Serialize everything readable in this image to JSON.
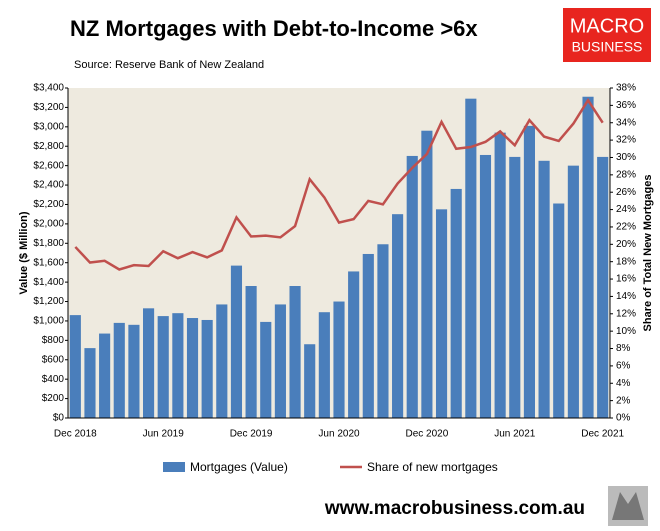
{
  "chart_data": {
    "type": "bar",
    "title": "NZ Mortgages with Debt-to-Income >6x",
    "subtitle": "Source: Reserve Bank of New Zealand",
    "logo": [
      "MACRO",
      "BUSINESS"
    ],
    "footer": "www.macrobusiness.com.au",
    "ylabel": "Value ($ Million)",
    "y2label": "Share of Total New Mortgages",
    "categories": [
      "Dec 2018",
      null,
      null,
      null,
      null,
      null,
      "Jun 2019",
      null,
      null,
      null,
      null,
      null,
      "Dec 2019",
      null,
      null,
      null,
      null,
      null,
      "Jun 2020",
      null,
      null,
      null,
      null,
      null,
      "Dec 2020",
      null,
      null,
      null,
      null,
      null,
      "Jun 2021",
      null,
      null,
      null,
      null,
      null,
      "Dec 2021"
    ],
    "series": [
      {
        "name": "Mortgages (Value)",
        "type": "bar",
        "color": "#4a7ebb",
        "values": [
          1060,
          720,
          870,
          980,
          960,
          1130,
          1050,
          1080,
          1030,
          1010,
          1170,
          1570,
          1360,
          990,
          1170,
          1360,
          760,
          1090,
          1200,
          1510,
          1690,
          1790,
          2100,
          2700,
          2960,
          2150,
          2360,
          3290,
          2710,
          2940,
          2690,
          3010,
          2650,
          2210,
          2600,
          3310,
          2690
        ]
      },
      {
        "name": "Share of new mortgages",
        "type": "line",
        "axis": "y2",
        "color": "#c0504d",
        "values": [
          19.7,
          17.9,
          18.1,
          17.1,
          17.6,
          17.5,
          19.2,
          18.4,
          19.1,
          18.5,
          19.3,
          23.1,
          20.9,
          21.0,
          20.8,
          22.1,
          27.5,
          25.4,
          22.5,
          22.9,
          25.0,
          24.6,
          27.0,
          28.8,
          30.4,
          34.1,
          31.0,
          31.2,
          31.8,
          33.0,
          31.4,
          34.3,
          32.4,
          31.9,
          33.9,
          36.6,
          34.0
        ]
      }
    ],
    "ylim": [
      0,
      3400
    ],
    "yticks": [
      {
        "value": 0,
        "label": "$0"
      },
      {
        "value": 200,
        "label": "$200"
      },
      {
        "value": 400,
        "label": "$400"
      },
      {
        "value": 600,
        "label": "$600"
      },
      {
        "value": 800,
        "label": "$800"
      },
      {
        "value": 1000,
        "label": "$1,000"
      },
      {
        "value": 1200,
        "label": "$1,200"
      },
      {
        "value": 1400,
        "label": "$1,400"
      },
      {
        "value": 1600,
        "label": "$1,600"
      },
      {
        "value": 1800,
        "label": "$1,800"
      },
      {
        "value": 2000,
        "label": "$2,000"
      },
      {
        "value": 2200,
        "label": "$2,200"
      },
      {
        "value": 2400,
        "label": "$2,400"
      },
      {
        "value": 2600,
        "label": "$2,600"
      },
      {
        "value": 2800,
        "label": "$2,800"
      },
      {
        "value": 3000,
        "label": "$3,000"
      },
      {
        "value": 3200,
        "label": "$3,200"
      },
      {
        "value": 3400,
        "label": "$3,400"
      }
    ],
    "y2lim": [
      0,
      38
    ],
    "y2ticks": [
      {
        "value": 0,
        "label": "0%"
      },
      {
        "value": 2,
        "label": "2%"
      },
      {
        "value": 4,
        "label": "4%"
      },
      {
        "value": 6,
        "label": "6%"
      },
      {
        "value": 8,
        "label": "8%"
      },
      {
        "value": 10,
        "label": "10%"
      },
      {
        "value": 12,
        "label": "12%"
      },
      {
        "value": 14,
        "label": "14%"
      },
      {
        "value": 16,
        "label": "16%"
      },
      {
        "value": 18,
        "label": "18%"
      },
      {
        "value": 20,
        "label": "20%"
      },
      {
        "value": 22,
        "label": "22%"
      },
      {
        "value": 24,
        "label": "24%"
      },
      {
        "value": 26,
        "label": "26%"
      },
      {
        "value": 28,
        "label": "28%"
      },
      {
        "value": 30,
        "label": "30%"
      },
      {
        "value": 32,
        "label": "32%"
      },
      {
        "value": 34,
        "label": "34%"
      },
      {
        "value": 36,
        "label": "36%"
      },
      {
        "value": 38,
        "label": "38%"
      }
    ],
    "plot_background": "#eeeadf"
  }
}
